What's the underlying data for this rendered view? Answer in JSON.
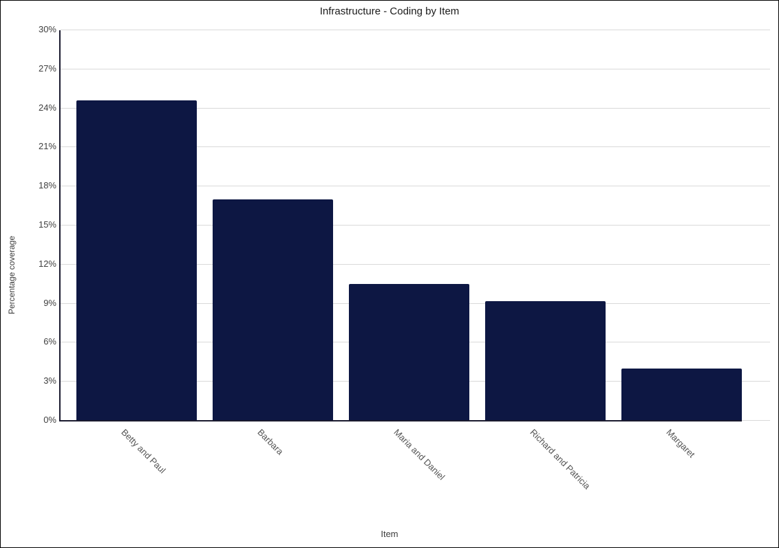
{
  "window": {
    "background": "#ffffff",
    "border_color": "#000000"
  },
  "chart_data": {
    "type": "bar",
    "title": "Infrastructure - Coding by Item",
    "xlabel": "Item",
    "ylabel": "Percentage coverage",
    "categories": [
      "Betty and Paul",
      "Barbara",
      "Maria and Daniel",
      "Richard and Patricia",
      "Margaret"
    ],
    "values": [
      24.6,
      17.0,
      10.5,
      9.2,
      4.0
    ],
    "ylim": [
      0,
      30
    ],
    "ytick_step": 3,
    "ytick_labels": [
      "0%",
      "3%",
      "6%",
      "9%",
      "12%",
      "15%",
      "18%",
      "21%",
      "24%",
      "27%",
      "30%"
    ],
    "grid": true,
    "legend": false,
    "label_rotation_deg": 45,
    "colors": {
      "bar": "#0d1743",
      "axis": "#1a1a2e",
      "gridline": "#d9d9d9",
      "title_text": "#1a1a1a",
      "tick_text": "#404040",
      "category_text": "#555555"
    }
  }
}
